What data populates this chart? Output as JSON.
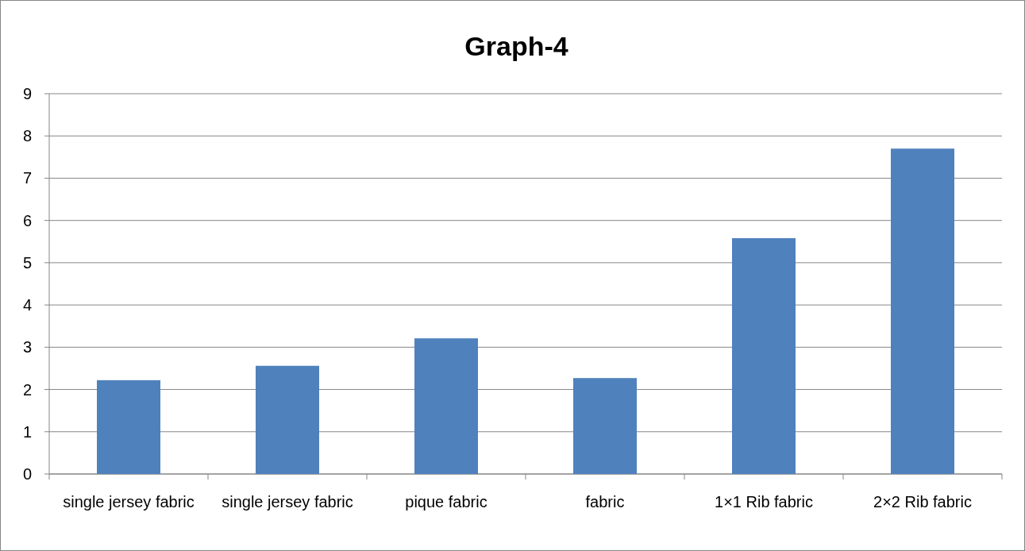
{
  "chart_data": {
    "type": "bar",
    "title": "Graph-4",
    "categories": [
      "single jersey fabric",
      "single jersey fabric",
      "pique fabric",
      "fabric",
      "1×1 Rib fabric",
      "2×2 Rib fabric"
    ],
    "values": [
      2.22,
      2.56,
      3.21,
      2.27,
      5.58,
      7.7
    ],
    "color": "#4f81bd",
    "ylim": [
      0,
      9
    ],
    "yticks": [
      0,
      1,
      2,
      3,
      4,
      5,
      6,
      7,
      8,
      9
    ],
    "grid": "y"
  }
}
